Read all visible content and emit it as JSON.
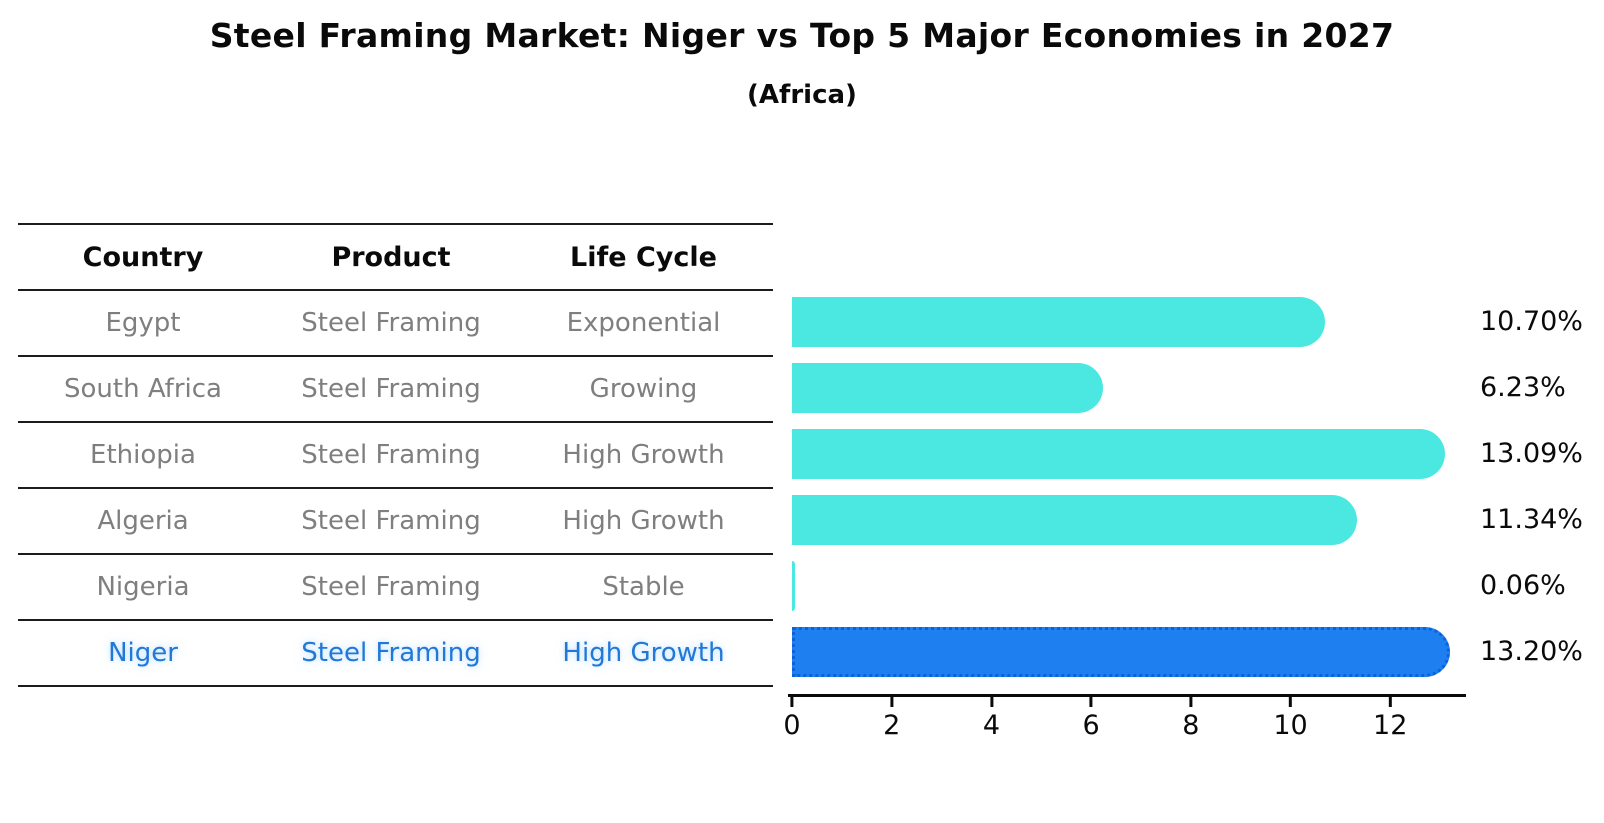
{
  "title": "Steel Framing Market: Niger vs Top 5 Major Economies in 2027",
  "subtitle": "(Africa)",
  "table": {
    "headers": [
      "Country",
      "Product",
      "Life Cycle"
    ],
    "rows": [
      {
        "country": "Egypt",
        "product": "Steel Framing",
        "life_cycle": "Exponential",
        "highlight": false
      },
      {
        "country": "South Africa",
        "product": "Steel Framing",
        "life_cycle": "Growing",
        "highlight": false
      },
      {
        "country": "Ethiopia",
        "product": "Steel Framing",
        "life_cycle": "High Growth",
        "highlight": false
      },
      {
        "country": "Algeria",
        "product": "Steel Framing",
        "life_cycle": "High Growth",
        "highlight": false
      },
      {
        "country": "Nigeria",
        "product": "Steel Framing",
        "life_cycle": "Stable",
        "highlight": false
      },
      {
        "country": "Niger",
        "product": "Steel Framing",
        "life_cycle": "High Growth",
        "highlight": true
      }
    ]
  },
  "chart_data": {
    "type": "bar",
    "orientation": "horizontal",
    "title": "Steel Framing Market: Niger vs Top 5 Major Economies in 2027",
    "subtitle": "(Africa)",
    "categories": [
      "Egypt",
      "South Africa",
      "Ethiopia",
      "Algeria",
      "Nigeria",
      "Niger"
    ],
    "values": [
      10.7,
      6.23,
      13.09,
      11.34,
      0.06,
      13.2
    ],
    "value_labels": [
      "10.70%",
      "6.23%",
      "13.09%",
      "11.34%",
      "0.06%",
      "13.20%"
    ],
    "unit": "%",
    "xlabel": "",
    "ylabel": "",
    "xlim": [
      0,
      13.5
    ],
    "x_ticks": [
      0,
      2,
      4,
      6,
      8,
      10,
      12
    ],
    "grid": false,
    "legend": false,
    "bar_color": "#4BE7E1",
    "highlight_index": 5,
    "highlight_bar_color": "#1E80F0",
    "highlight_border_color": "#0E62D9",
    "highlight_text_color": "#2278D7"
  }
}
